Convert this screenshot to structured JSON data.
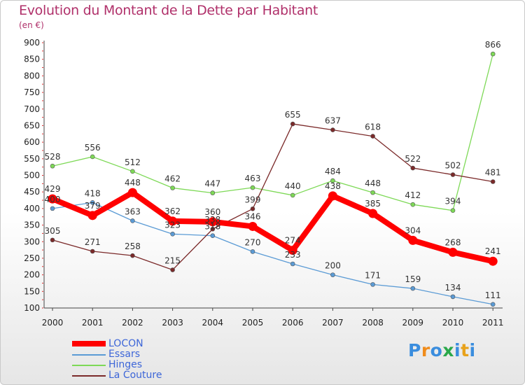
{
  "chart_data": {
    "type": "line",
    "title": "Evolution du Montant de la Dette par Habitant",
    "subtitle": "(en €)",
    "x": [
      "2000",
      "2001",
      "2002",
      "2003",
      "2004",
      "2005",
      "2006",
      "2007",
      "2008",
      "2009",
      "2010",
      "2011"
    ],
    "ylim": [
      100,
      900
    ],
    "yticks": [
      100,
      150,
      200,
      250,
      300,
      350,
      400,
      450,
      500,
      550,
      600,
      650,
      700,
      750,
      800,
      850,
      900
    ],
    "grid": false,
    "legend_position": "bottom-left",
    "series": [
      {
        "name": "Essars",
        "color": "#5b9bd5",
        "width": 1.3,
        "marker": 3,
        "values": [
          400,
          418,
          363,
          323,
          318,
          270,
          233,
          200,
          171,
          159,
          134,
          111
        ]
      },
      {
        "name": "Hinges",
        "color": "#7ed957",
        "width": 1.3,
        "marker": 3,
        "values": [
          528,
          556,
          512,
          462,
          447,
          463,
          440,
          484,
          448,
          412,
          394,
          866
        ]
      },
      {
        "name": "La Couture",
        "color": "#7b2a2a",
        "width": 1.3,
        "marker": 3,
        "values": [
          305,
          271,
          258,
          215,
          338,
          399,
          655,
          637,
          618,
          522,
          502,
          481
        ]
      },
      {
        "name": "LOCON",
        "color": "#ff0000",
        "width": 8,
        "marker": 6.5,
        "values": [
          429,
          379,
          448,
          362,
          360,
          346,
          274,
          438,
          385,
          304,
          268,
          241
        ]
      }
    ]
  },
  "legend": {
    "items": [
      {
        "name": "LOCON",
        "color": "#ff0000"
      },
      {
        "name": "Essars",
        "color": "#5b9bd5"
      },
      {
        "name": "Hinges",
        "color": "#7ed957"
      },
      {
        "name": "La Couture",
        "color": "#7b2a2a"
      }
    ]
  },
  "logo": {
    "text": "Proxiti",
    "letter_colors": [
      "#3a8dde",
      "#f08c1c",
      "#3a8dde",
      "#2aa84a",
      "#3a8dde",
      "#e8a21b",
      "#3a8dde"
    ]
  }
}
